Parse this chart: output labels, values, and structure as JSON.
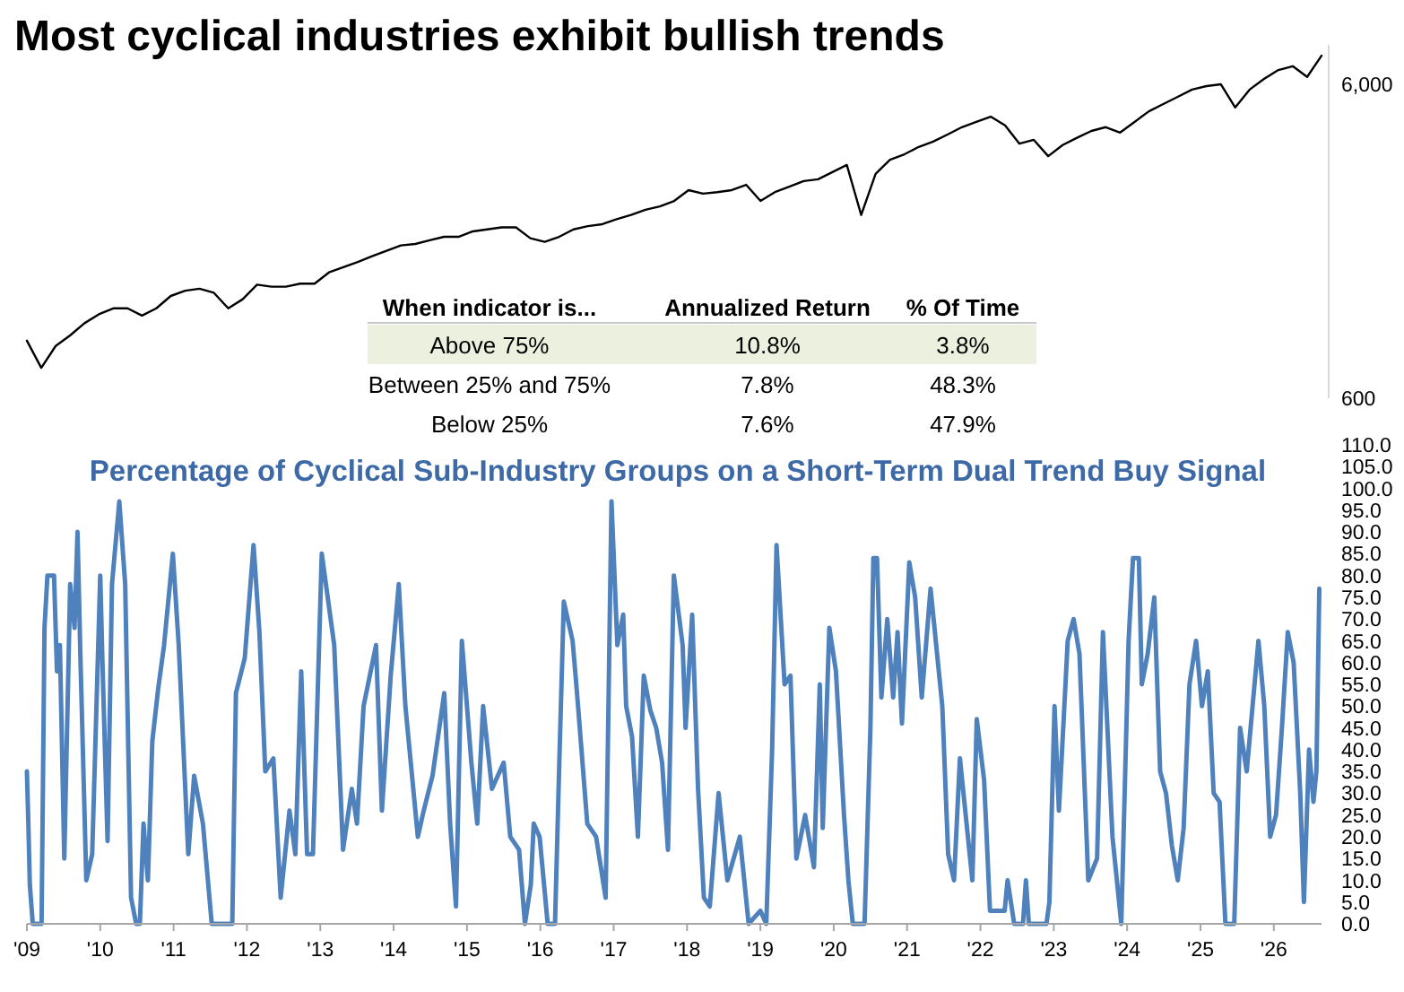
{
  "chart_data": [
    {
      "type": "line",
      "title": "Most cyclical industries exhibit bullish trends",
      "log": true,
      "tick_labels": "y",
      "ylim": [
        600,
        8000
      ],
      "yticks": [
        600,
        {
          "value": 6000,
          "label": "6,000"
        }
      ],
      "categories": [
        null,
        null,
        null,
        null,
        null,
        null,
        null,
        null,
        null,
        null,
        null,
        null,
        null,
        null,
        null,
        null,
        null,
        null,
        null,
        null,
        null,
        null,
        null,
        null,
        null,
        null,
        null,
        null,
        null,
        null,
        null,
        null,
        null,
        null,
        null,
        null,
        null,
        null,
        null,
        null,
        null,
        null,
        null,
        null,
        null,
        null,
        null,
        null,
        null,
        null,
        null,
        null,
        null,
        null,
        null,
        null,
        null,
        null,
        null,
        null,
        null,
        null,
        null,
        null,
        null,
        null,
        null,
        null,
        null,
        null,
        null,
        null,
        null,
        null,
        null,
        null,
        null,
        null,
        null,
        null,
        null,
        null,
        null,
        null,
        null,
        null,
        null,
        null,
        null,
        null,
        null
      ],
      "series": [
        {
          "color": "#000000",
          "values": [
            915,
            750,
            880,
            951,
            1040,
            1110,
            1160,
            1160,
            1100,
            1160,
            1270,
            1320,
            1340,
            1300,
            1160,
            1240,
            1380,
            1360,
            1360,
            1390,
            1390,
            1510,
            1570,
            1630,
            1700,
            1770,
            1840,
            1860,
            1910,
            1960,
            1960,
            2040,
            2070,
            2100,
            2100,
            1940,
            1890,
            1960,
            2070,
            2120,
            2150,
            2230,
            2300,
            2390,
            2450,
            2550,
            2760,
            2690,
            2720,
            2760,
            2870,
            2550,
            2720,
            2830,
            2950,
            2990,
            3150,
            3320,
            2300,
            3110,
            3450,
            3590,
            3790,
            3940,
            4150,
            4380,
            4550,
            4730,
            4440,
            3880,
            3990,
            3540,
            3840,
            4050,
            4260,
            4380,
            4210,
            4550,
            4920,
            5190,
            5470,
            5770,
            5920,
            6000,
            5060,
            5770,
            6240,
            6660,
            6850,
            6330,
            7400
          ]
        }
      ]
    },
    {
      "type": "line",
      "title": "Percentage of Cyclical Sub-Industry Groups on a Short-Term Dual Trend Buy Signal",
      "xlim": [
        2009,
        2026.65
      ],
      "xticks": [
        {
          "value": 2009,
          "label": "'09"
        },
        {
          "value": 2010,
          "label": "'10"
        },
        {
          "value": 2011,
          "label": "'11"
        },
        {
          "value": 2012,
          "label": "'12"
        },
        {
          "value": 2013,
          "label": "'13"
        },
        {
          "value": 2014,
          "label": "'14"
        },
        {
          "value": 2015,
          "label": "'15"
        },
        {
          "value": 2016,
          "label": "'16"
        },
        {
          "value": 2017,
          "label": "'17"
        },
        {
          "value": 2018,
          "label": "'18"
        },
        {
          "value": 2019,
          "label": "'19"
        },
        {
          "value": 2020,
          "label": "'20"
        },
        {
          "value": 2021,
          "label": "'21"
        },
        {
          "value": 2022,
          "label": "'22"
        },
        {
          "value": 2023,
          "label": "'23"
        },
        {
          "value": 2024,
          "label": "'24"
        },
        {
          "value": 2025,
          "label": "'25"
        },
        {
          "value": 2026,
          "label": "'26"
        }
      ],
      "ylim": [
        0,
        110
      ],
      "yticks": [
        {
          "value": 0,
          "label": "0.0"
        },
        {
          "value": 5,
          "label": "5.0"
        },
        {
          "value": 10,
          "label": "10.0"
        },
        {
          "value": 15,
          "label": "15.0"
        },
        {
          "value": 20,
          "label": "20.0"
        },
        {
          "value": 25,
          "label": "25.0"
        },
        {
          "value": 30,
          "label": "30.0"
        },
        {
          "value": 35,
          "label": "35.0"
        },
        {
          "value": 40,
          "label": "40.0"
        },
        {
          "value": 45,
          "label": "45.0"
        },
        {
          "value": 50,
          "label": "50.0"
        },
        {
          "value": 55,
          "label": "55.0"
        },
        {
          "value": 60,
          "label": "60.0"
        },
        {
          "value": 65,
          "label": "65.0"
        },
        {
          "value": 70,
          "label": "70.0"
        },
        {
          "value": 75,
          "label": "75.0"
        },
        {
          "value": 80,
          "label": "80.0"
        },
        {
          "value": 85,
          "label": "85.0"
        },
        {
          "value": 90,
          "label": "90.0"
        },
        {
          "value": 95,
          "label": "95.0"
        },
        {
          "value": 100,
          "label": "100.0"
        },
        {
          "value": 105,
          "label": "105.0"
        },
        {
          "value": 110,
          "label": "110.0"
        }
      ],
      "x": [
        2009.0,
        2009.02,
        2009.04,
        2009.08,
        2009.2,
        2009.24,
        2009.28,
        2009.37,
        2009.41,
        2009.45,
        2009.51,
        2009.59,
        2009.65,
        2009.69,
        2009.73,
        2009.81,
        2009.89,
        2010.0,
        2010.03,
        2010.1,
        2010.16,
        2010.26,
        2010.34,
        2010.42,
        2010.49,
        2010.54,
        2010.59,
        2010.65,
        2010.71,
        2010.79,
        2010.87,
        2010.99,
        2011.07,
        2011.2,
        2011.28,
        2011.4,
        2011.52,
        2011.8,
        2011.85,
        2011.97,
        2012.09,
        2012.17,
        2012.25,
        2012.36,
        2012.46,
        2012.58,
        2012.66,
        2012.74,
        2012.82,
        2012.9,
        2013.02,
        2013.19,
        2013.31,
        2013.43,
        2013.5,
        2013.59,
        2013.76,
        2013.84,
        2013.96,
        2014.07,
        2014.16,
        2014.33,
        2014.41,
        2014.53,
        2014.69,
        2014.77,
        2014.85,
        2014.93,
        2015.06,
        2015.14,
        2015.22,
        2015.34,
        2015.5,
        2015.59,
        2015.71,
        2015.79,
        2015.87,
        2015.91,
        2015.99,
        2016.1,
        2016.2,
        2016.26,
        2016.32,
        2016.44,
        2016.5,
        2016.64,
        2016.76,
        2016.89,
        2016.97,
        2017.05,
        2017.13,
        2017.17,
        2017.25,
        2017.33,
        2017.41,
        2017.5,
        2017.58,
        2017.66,
        2017.74,
        2017.82,
        2017.94,
        2017.98,
        2018.07,
        2018.15,
        2018.23,
        2018.31,
        2018.43,
        2018.55,
        2018.72,
        2018.84,
        2019.0,
        2019.08,
        2019.16,
        2019.22,
        2019.33,
        2019.41,
        2019.49,
        2019.61,
        2019.73,
        2019.81,
        2019.85,
        2019.94,
        2020.03,
        2020.14,
        2020.2,
        2020.26,
        2020.42,
        2020.5,
        2020.54,
        2020.59,
        2020.65,
        2020.73,
        2020.81,
        2020.87,
        2020.93,
        2021.03,
        2021.11,
        2021.2,
        2021.32,
        2021.48,
        2021.56,
        2021.64,
        2021.72,
        2021.89,
        2021.95,
        2022.05,
        2022.13,
        2022.33,
        2022.37,
        2022.46,
        2022.58,
        2022.62,
        2022.66,
        2022.9,
        2022.94,
        2023.01,
        2023.07,
        2023.19,
        2023.27,
        2023.35,
        2023.47,
        2023.59,
        2023.67,
        2023.8,
        2023.92,
        2024.02,
        2024.08,
        2024.16,
        2024.2,
        2024.28,
        2024.37,
        2024.45,
        2024.53,
        2024.61,
        2024.69,
        2024.77,
        2024.85,
        2024.94,
        2025.02,
        2025.1,
        2025.18,
        2025.26,
        2025.34,
        2025.46,
        2025.54,
        2025.63,
        2025.71,
        2025.79,
        2025.87,
        2025.95,
        2026.03,
        2026.11,
        2026.19,
        2026.27,
        2026.36,
        2026.41,
        2026.48,
        2026.54,
        2026.58,
        2026.62
      ],
      "series": [
        {
          "color": "#4f81bd",
          "values": [
            35,
            23,
            9,
            0,
            0,
            68,
            80,
            80,
            58,
            64,
            15,
            78,
            68,
            90,
            61,
            10,
            16,
            80,
            60,
            19,
            78,
            97,
            78,
            6,
            0,
            0,
            23,
            10,
            42,
            54,
            64,
            85,
            64,
            16,
            34,
            23,
            0,
            0,
            53,
            61,
            87,
            67,
            35,
            38,
            6,
            26,
            16,
            58,
            16,
            16,
            85,
            64,
            17,
            31,
            23,
            50,
            64,
            26,
            57,
            78,
            50,
            20,
            26,
            34,
            53,
            23,
            4,
            65,
            37,
            23,
            50,
            31,
            37,
            20,
            17,
            0,
            9,
            23,
            20,
            0,
            0,
            38,
            74,
            65,
            53,
            23,
            20,
            6,
            97,
            64,
            71,
            50,
            43,
            20,
            57,
            49,
            45,
            37,
            17,
            80,
            64,
            45,
            71,
            31,
            6,
            4,
            30,
            10,
            20,
            0,
            3,
            0,
            40,
            87,
            55,
            57,
            15,
            25,
            13,
            55,
            22,
            68,
            58,
            25,
            10,
            0,
            0,
            45,
            84,
            84,
            52,
            70,
            52,
            67,
            46,
            83,
            75,
            52,
            77,
            50,
            16,
            10,
            38,
            10,
            47,
            33,
            3,
            3,
            10,
            0,
            0,
            10,
            0,
            0,
            5,
            50,
            26,
            65,
            70,
            62,
            10,
            15,
            67,
            20,
            0,
            65,
            84,
            84,
            55,
            62,
            75,
            35,
            30,
            18,
            10,
            22,
            55,
            65,
            50,
            58,
            30,
            28,
            0,
            0,
            45,
            35,
            50,
            65,
            50,
            20,
            25,
            45,
            67,
            60,
            30,
            5,
            40,
            28,
            35,
            77
          ]
        }
      ]
    },
    {
      "type": "other",
      "annotations": [
        "When indicator is...",
        "Annualized Return",
        "% Of Time",
        "Above 75%",
        "10.8%",
        "3.8%",
        "Between 25% and 75%",
        "7.8%",
        "48.3%",
        "Below 25%",
        "7.6%",
        "47.9%"
      ]
    }
  ]
}
